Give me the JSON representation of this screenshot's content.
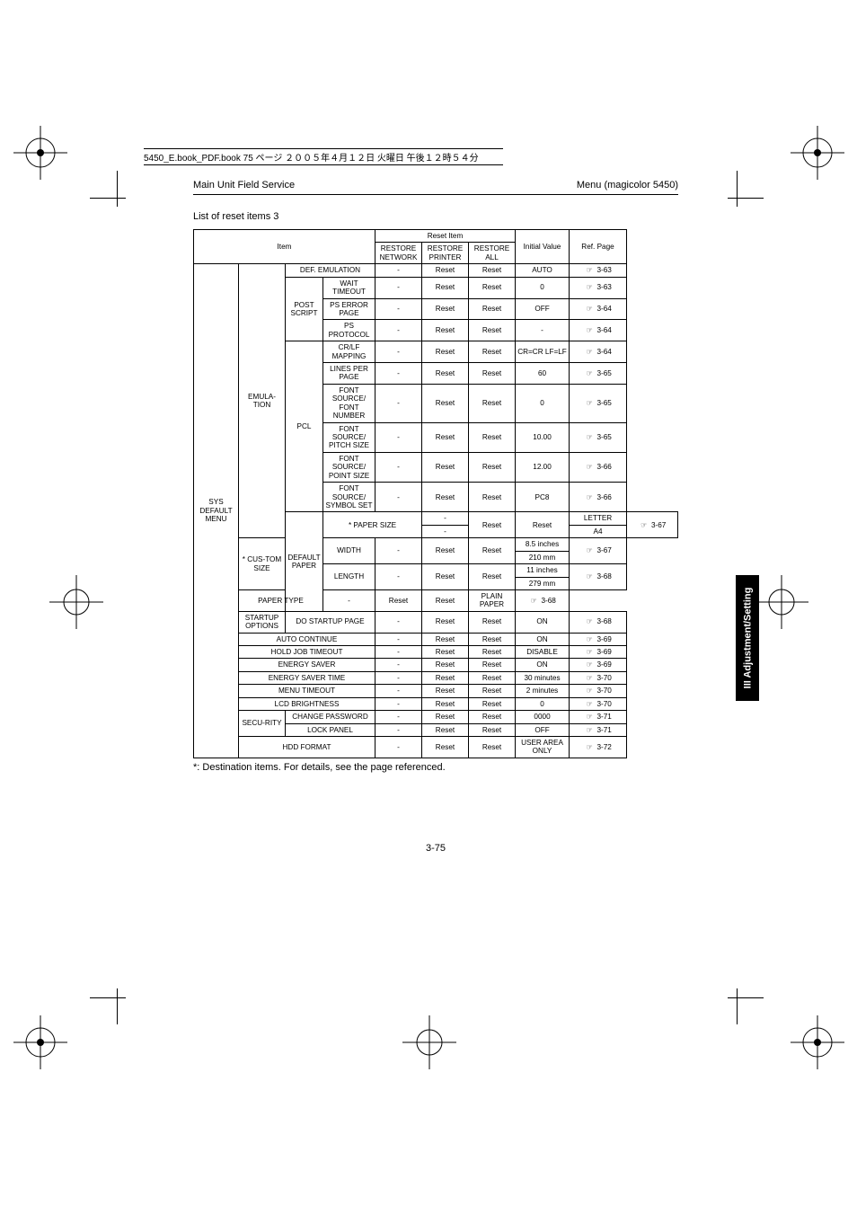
{
  "header": {
    "left": "Main Unit Field Service",
    "right": "Menu (magicolor 5450)"
  },
  "book_line": "5450_E.book_PDF.book  75 ページ  ２００５年４月１２日  火曜日  午後１２時５４分",
  "list_title": "List of reset items 3",
  "footnote": "*: Destination items. For details, see the page referenced.",
  "page_number": "3-75",
  "side_tab": "III Adjustment/Setting",
  "hand_glyph": "☞",
  "table": {
    "header": {
      "item": "Item",
      "reset_item": "Reset Item",
      "restore_network": "RESTORE NETWORK",
      "restore_printer": "RESTORE PRINTER",
      "restore_all": "RESTORE ALL",
      "initial_value": "Initial Value",
      "ref_page": "Ref. Page"
    },
    "group": "SYS DEFAULT MENU",
    "rows": [
      {
        "c2": "EMULA-TION",
        "c2rs": 12,
        "c3": "DEF. EMULATION",
        "c3cs": 2,
        "rn": "-",
        "rp": "Reset",
        "ra": "Reset",
        "iv": "AUTO",
        "pg": "3-63"
      },
      {
        "c3": "POST SCRIPT",
        "c3rs": 3,
        "c4": "WAIT TIMEOUT",
        "rn": "-",
        "rp": "Reset",
        "ra": "Reset",
        "iv": "0",
        "pg": "3-63"
      },
      {
        "c4": "PS ERROR PAGE",
        "rn": "-",
        "rp": "Reset",
        "ra": "Reset",
        "iv": "OFF",
        "pg": "3-64"
      },
      {
        "c4": "PS PROTOCOL",
        "rn": "-",
        "rp": "Reset",
        "ra": "Reset",
        "iv": "-",
        "pg": "3-64"
      },
      {
        "c3": "PCL",
        "c3rs": 6,
        "c4": "CR/LF MAPPING",
        "rn": "-",
        "rp": "Reset",
        "ra": "Reset",
        "iv": "CR=CR LF=LF",
        "pg": "3-64"
      },
      {
        "c4": "LINES PER PAGE",
        "rn": "-",
        "rp": "Reset",
        "ra": "Reset",
        "iv": "60",
        "pg": "3-65"
      },
      {
        "c4": "FONT SOURCE/ FONT NUMBER",
        "rn": "-",
        "rp": "Reset",
        "ra": "Reset",
        "iv": "0",
        "pg": "3-65"
      },
      {
        "c4": "FONT SOURCE/ PITCH SIZE",
        "rn": "-",
        "rp": "Reset",
        "ra": "Reset",
        "iv": "10.00",
        "pg": "3-65"
      },
      {
        "c4": "FONT SOURCE/ POINT SIZE",
        "rn": "-",
        "rp": "Reset",
        "ra": "Reset",
        "iv": "12.00",
        "pg": "3-66"
      },
      {
        "c4": "FONT SOURCE/ SYMBOL SET",
        "rn": "-",
        "rp": "Reset",
        "ra": "Reset",
        "iv": "PC8",
        "pg": "3-66"
      },
      {
        "c2": "DEFAULT PAPER",
        "c2rs": 7,
        "c3": "* PAPER SIZE",
        "c3cs": 2,
        "c3rs": 2,
        "rn": "-",
        "rp": "Reset",
        "rprs": 2,
        "ra": "Reset",
        "rars": 2,
        "iv": "LETTER",
        "pg": "3-67",
        "pgrs": 2
      },
      {
        "rn": "-",
        "iv": "A4"
      },
      {
        "c3": "* CUS-TOM SIZE",
        "c3rs": 4,
        "c4": "WIDTH",
        "c4rs": 2,
        "rn": "-",
        "rnrs": 2,
        "rp": "Reset",
        "rprs": 2,
        "ra": "Reset",
        "rars": 2,
        "iv": "8.5 inches",
        "pg": "3-67",
        "pgrs": 2
      },
      {
        "iv": "210 mm"
      },
      {
        "c4": "LENGTH",
        "c4rs": 2,
        "rn": "-",
        "rnrs": 2,
        "rp": "Reset",
        "rprs": 2,
        "ra": "Reset",
        "rars": 2,
        "iv": "11 inches",
        "pg": "3-68",
        "pgrs": 2
      },
      {
        "iv": "279 mm"
      },
      {
        "c3": "PAPER TYPE",
        "c3cs": 2,
        "rn": "-",
        "rp": "Reset",
        "ra": "Reset",
        "iv": "PLAIN PAPER",
        "pg": "3-68"
      },
      {
        "c2": "STARTUP OPTIONS",
        "c3": "DO STARTUP PAGE",
        "c3cs": 2,
        "rn": "-",
        "rp": "Reset",
        "ra": "Reset",
        "iv": "ON",
        "pg": "3-68"
      },
      {
        "c2": "AUTO CONTINUE",
        "c2cs": 3,
        "rn": "-",
        "rp": "Reset",
        "ra": "Reset",
        "iv": "ON",
        "pg": "3-69"
      },
      {
        "c2": "HOLD JOB TIMEOUT",
        "c2cs": 3,
        "rn": "-",
        "rp": "Reset",
        "ra": "Reset",
        "iv": "DISABLE",
        "pg": "3-69"
      },
      {
        "c2": "ENERGY SAVER",
        "c2cs": 3,
        "rn": "-",
        "rp": "Reset",
        "ra": "Reset",
        "iv": "ON",
        "pg": "3-69"
      },
      {
        "c2": "ENERGY SAVER TIME",
        "c2cs": 3,
        "rn": "-",
        "rp": "Reset",
        "ra": "Reset",
        "iv": "30 minutes",
        "pg": "3-70"
      },
      {
        "c2": "MENU TIMEOUT",
        "c2cs": 3,
        "rn": "-",
        "rp": "Reset",
        "ra": "Reset",
        "iv": "2 minutes",
        "pg": "3-70"
      },
      {
        "c2": "LCD BRIGHTNESS",
        "c2cs": 3,
        "rn": "-",
        "rp": "Reset",
        "ra": "Reset",
        "iv": "0",
        "pg": "3-70"
      },
      {
        "c2": "SECU-RITY",
        "c2rs": 2,
        "c3": "CHANGE PASSWORD",
        "c3cs": 2,
        "rn": "-",
        "rp": "Reset",
        "ra": "Reset",
        "iv": "0000",
        "pg": "3-71"
      },
      {
        "c3": "LOCK PANEL",
        "c3cs": 2,
        "rn": "-",
        "rp": "Reset",
        "ra": "Reset",
        "iv": "OFF",
        "pg": "3-71"
      },
      {
        "c2": "HDD FORMAT",
        "c2cs": 3,
        "rn": "-",
        "rp": "Reset",
        "ra": "Reset",
        "iv": "USER AREA ONLY",
        "pg": "3-72"
      }
    ]
  },
  "colors": {
    "ink": "#000000",
    "paper": "#ffffff"
  }
}
